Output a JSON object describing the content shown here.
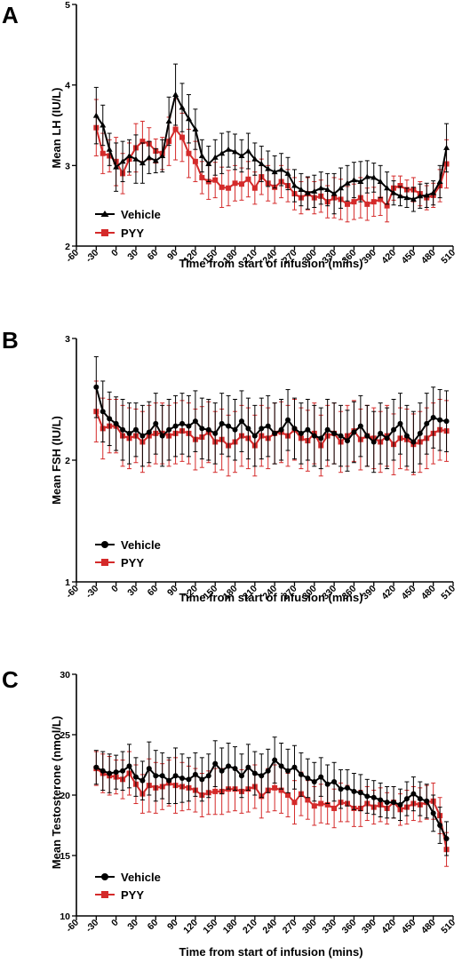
{
  "chart_data": [
    {
      "panel": "A",
      "type": "line",
      "xlabel": "Time from start of infusion (mins)",
      "ylabel": "Mean LH (IU/L)",
      "xlim": [
        -60,
        510
      ],
      "ylim": [
        2,
        5
      ],
      "xticks": [
        -60,
        -30,
        0,
        30,
        60,
        90,
        120,
        150,
        180,
        210,
        240,
        270,
        300,
        330,
        360,
        390,
        420,
        450,
        480,
        510
      ],
      "yticks": [
        2,
        3,
        4,
        5
      ],
      "legend": "bottom-left",
      "series": [
        {
          "name": "Vehicle",
          "color": "#000000",
          "marker": "triangle",
          "x": [
            -30,
            -20,
            -10,
            0,
            10,
            20,
            30,
            40,
            50,
            60,
            70,
            80,
            90,
            100,
            110,
            120,
            130,
            140,
            150,
            160,
            170,
            180,
            190,
            200,
            210,
            220,
            230,
            240,
            250,
            260,
            270,
            280,
            290,
            300,
            310,
            320,
            330,
            340,
            350,
            360,
            370,
            380,
            390,
            400,
            410,
            420,
            430,
            440,
            450,
            460,
            470,
            480,
            490,
            500
          ],
          "y": [
            3.62,
            3.5,
            3.2,
            2.98,
            3.05,
            3.12,
            3.08,
            3.03,
            3.1,
            3.06,
            3.12,
            3.55,
            3.88,
            3.72,
            3.58,
            3.45,
            3.12,
            3.02,
            3.1,
            3.15,
            3.2,
            3.17,
            3.12,
            3.18,
            3.08,
            3.02,
            2.96,
            2.92,
            2.95,
            2.9,
            2.75,
            2.7,
            2.66,
            2.68,
            2.72,
            2.7,
            2.65,
            2.72,
            2.78,
            2.82,
            2.8,
            2.86,
            2.85,
            2.8,
            2.72,
            2.66,
            2.62,
            2.6,
            2.58,
            2.62,
            2.63,
            2.66,
            2.8,
            3.22
          ],
          "err": [
            0.35,
            0.25,
            0.2,
            0.3,
            0.25,
            0.2,
            0.3,
            0.25,
            0.2,
            0.15,
            0.2,
            0.3,
            0.38,
            0.3,
            0.3,
            0.25,
            0.2,
            0.22,
            0.22,
            0.25,
            0.22,
            0.22,
            0.2,
            0.22,
            0.2,
            0.22,
            0.22,
            0.2,
            0.2,
            0.2,
            0.2,
            0.2,
            0.2,
            0.2,
            0.2,
            0.2,
            0.25,
            0.25,
            0.22,
            0.22,
            0.25,
            0.2,
            0.18,
            0.2,
            0.2,
            0.15,
            0.12,
            0.12,
            0.15,
            0.15,
            0.15,
            0.15,
            0.2,
            0.3
          ]
        },
        {
          "name": "PYY",
          "color": "#d42a2a",
          "marker": "square",
          "x": [
            -30,
            -20,
            -10,
            0,
            10,
            20,
            30,
            40,
            50,
            60,
            70,
            80,
            90,
            100,
            110,
            120,
            130,
            140,
            150,
            160,
            170,
            180,
            190,
            200,
            210,
            220,
            230,
            240,
            250,
            260,
            270,
            280,
            290,
            300,
            310,
            320,
            330,
            340,
            350,
            360,
            370,
            380,
            390,
            400,
            410,
            420,
            430,
            440,
            450,
            460,
            470,
            480,
            490,
            500
          ],
          "y": [
            3.47,
            3.15,
            3.12,
            3.05,
            2.9,
            3.08,
            3.22,
            3.3,
            3.27,
            3.18,
            3.15,
            3.3,
            3.45,
            3.35,
            3.15,
            3.05,
            2.85,
            2.8,
            2.82,
            2.73,
            2.72,
            2.78,
            2.77,
            2.83,
            2.72,
            2.86,
            2.78,
            2.73,
            2.8,
            2.75,
            2.65,
            2.6,
            2.65,
            2.6,
            2.62,
            2.55,
            2.6,
            2.58,
            2.52,
            2.55,
            2.6,
            2.52,
            2.55,
            2.58,
            2.5,
            2.72,
            2.75,
            2.7,
            2.7,
            2.65,
            2.6,
            2.63,
            2.75,
            3.02
          ]
        }
      ]
    },
    {
      "panel": "B",
      "type": "line",
      "xlabel": "Time from start of infusion (mins)",
      "ylabel": "Mean FSH (IU/L)",
      "xlim": [
        -60,
        510
      ],
      "ylim": [
        1,
        3
      ],
      "xticks": [
        -60,
        -30,
        0,
        30,
        60,
        90,
        120,
        150,
        180,
        210,
        240,
        270,
        300,
        330,
        360,
        390,
        420,
        450,
        480,
        510
      ],
      "yticks": [
        1,
        2,
        3
      ],
      "legend": "bottom-left",
      "series": [
        {
          "name": "Vehicle",
          "color": "#000000",
          "marker": "circle",
          "x": [
            -30,
            -20,
            -10,
            0,
            10,
            20,
            30,
            40,
            50,
            60,
            70,
            80,
            90,
            100,
            110,
            120,
            130,
            140,
            150,
            160,
            170,
            180,
            190,
            200,
            210,
            220,
            230,
            240,
            250,
            260,
            270,
            280,
            290,
            300,
            310,
            320,
            330,
            340,
            350,
            360,
            370,
            380,
            390,
            400,
            410,
            420,
            430,
            440,
            450,
            460,
            470,
            480,
            490,
            500
          ],
          "y": [
            2.6,
            2.4,
            2.34,
            2.3,
            2.25,
            2.22,
            2.25,
            2.2,
            2.23,
            2.3,
            2.2,
            2.25,
            2.28,
            2.3,
            2.28,
            2.32,
            2.26,
            2.25,
            2.22,
            2.3,
            2.28,
            2.25,
            2.32,
            2.26,
            2.2,
            2.26,
            2.28,
            2.22,
            2.25,
            2.33,
            2.26,
            2.22,
            2.25,
            2.2,
            2.18,
            2.25,
            2.22,
            2.2,
            2.16,
            2.23,
            2.28,
            2.2,
            2.15,
            2.22,
            2.18,
            2.25,
            2.3,
            2.2,
            2.15,
            2.22,
            2.3,
            2.35,
            2.33,
            2.32
          ],
          "err": [
            0.25,
            0.25,
            0.22,
            0.22,
            0.25,
            0.25,
            0.22,
            0.25,
            0.25,
            0.25,
            0.25,
            0.25,
            0.25,
            0.25,
            0.25,
            0.25,
            0.25,
            0.25,
            0.25,
            0.25,
            0.25,
            0.25,
            0.25,
            0.25,
            0.25,
            0.25,
            0.25,
            0.25,
            0.25,
            0.25,
            0.25,
            0.25,
            0.25,
            0.25,
            0.25,
            0.25,
            0.25,
            0.25,
            0.25,
            0.25,
            0.25,
            0.25,
            0.25,
            0.25,
            0.25,
            0.25,
            0.25,
            0.25,
            0.25,
            0.25,
            0.25,
            0.25,
            0.25,
            0.25
          ]
        },
        {
          "name": "PYY",
          "color": "#d42a2a",
          "marker": "square",
          "x": [
            -30,
            -20,
            -10,
            0,
            10,
            20,
            30,
            40,
            50,
            60,
            70,
            80,
            90,
            100,
            110,
            120,
            130,
            140,
            150,
            160,
            170,
            180,
            190,
            200,
            210,
            220,
            230,
            240,
            250,
            260,
            270,
            280,
            290,
            300,
            310,
            320,
            330,
            340,
            350,
            360,
            370,
            380,
            390,
            400,
            410,
            420,
            430,
            440,
            450,
            460,
            470,
            480,
            490,
            500
          ],
          "y": [
            2.4,
            2.26,
            2.28,
            2.28,
            2.2,
            2.18,
            2.2,
            2.15,
            2.2,
            2.22,
            2.22,
            2.2,
            2.22,
            2.24,
            2.22,
            2.17,
            2.19,
            2.23,
            2.15,
            2.17,
            2.12,
            2.15,
            2.2,
            2.18,
            2.12,
            2.2,
            2.18,
            2.22,
            2.23,
            2.2,
            2.25,
            2.18,
            2.16,
            2.22,
            2.12,
            2.2,
            2.22,
            2.15,
            2.2,
            2.24,
            2.17,
            2.2,
            2.18,
            2.15,
            2.2,
            2.13,
            2.18,
            2.17,
            2.13,
            2.15,
            2.18,
            2.22,
            2.25,
            2.24
          ]
        }
      ]
    },
    {
      "panel": "C",
      "type": "line",
      "xlabel": "Time from start of infusion (mins)",
      "ylabel": "Mean Testosterone (nmol/L)",
      "xlim": [
        -60,
        510
      ],
      "ylim": [
        10,
        30
      ],
      "xticks": [
        -60,
        -30,
        0,
        30,
        60,
        90,
        120,
        150,
        180,
        210,
        240,
        270,
        300,
        330,
        360,
        390,
        420,
        450,
        480,
        510
      ],
      "yticks": [
        10,
        15,
        20,
        25,
        30
      ],
      "legend": "bottom-left",
      "series": [
        {
          "name": "Vehicle",
          "color": "#000000",
          "marker": "circle",
          "x": [
            -30,
            -20,
            -10,
            0,
            10,
            20,
            30,
            40,
            50,
            60,
            70,
            80,
            90,
            100,
            110,
            120,
            130,
            140,
            150,
            160,
            170,
            180,
            190,
            200,
            210,
            220,
            230,
            240,
            250,
            260,
            270,
            280,
            290,
            300,
            310,
            320,
            330,
            340,
            350,
            360,
            370,
            380,
            390,
            400,
            410,
            420,
            430,
            440,
            450,
            460,
            470,
            480,
            490,
            500
          ],
          "y": [
            22.3,
            22.0,
            21.8,
            21.9,
            22.0,
            22.4,
            21.5,
            21.2,
            22.2,
            21.6,
            21.6,
            21.2,
            21.6,
            21.4,
            21.3,
            21.7,
            21.3,
            21.6,
            22.6,
            22.0,
            22.4,
            22.2,
            21.6,
            22.3,
            21.8,
            21.6,
            22.0,
            22.9,
            22.4,
            22.0,
            22.3,
            21.7,
            21.4,
            21.1,
            21.5,
            20.9,
            21.1,
            20.5,
            20.6,
            20.3,
            20.2,
            19.9,
            19.8,
            19.6,
            19.4,
            19.4,
            19.2,
            19.7,
            20.1,
            19.7,
            19.5,
            18.5,
            17.5,
            16.4
          ],
          "err": [
            1.4,
            1.6,
            1.6,
            1.4,
            1.6,
            1.8,
            1.6,
            1.6,
            2.2,
            2.1,
            1.9,
            1.9,
            2.3,
            2.0,
            1.8,
            1.8,
            1.8,
            1.8,
            1.9,
            1.9,
            1.9,
            1.8,
            1.8,
            1.9,
            1.8,
            1.8,
            1.8,
            1.9,
            1.9,
            1.8,
            1.8,
            1.8,
            1.6,
            1.6,
            1.6,
            1.6,
            1.6,
            1.6,
            1.5,
            1.5,
            1.5,
            1.4,
            1.4,
            1.4,
            1.3,
            1.3,
            1.3,
            1.4,
            1.4,
            1.4,
            1.4,
            1.5,
            1.5,
            1.4
          ]
        },
        {
          "name": "PYY",
          "color": "#d42a2a",
          "marker": "square",
          "x": [
            -30,
            -20,
            -10,
            0,
            10,
            20,
            30,
            40,
            50,
            60,
            70,
            80,
            90,
            100,
            110,
            120,
            130,
            140,
            150,
            160,
            170,
            180,
            190,
            200,
            210,
            220,
            230,
            240,
            250,
            260,
            270,
            280,
            290,
            300,
            310,
            320,
            330,
            340,
            350,
            360,
            370,
            380,
            390,
            400,
            410,
            420,
            430,
            440,
            450,
            460,
            470,
            480,
            490,
            500
          ],
          "y": [
            22.2,
            21.8,
            21.6,
            21.5,
            21.3,
            21.8,
            20.9,
            20.1,
            20.8,
            20.6,
            20.7,
            21.0,
            20.8,
            20.7,
            20.6,
            20.4,
            20.0,
            20.2,
            20.3,
            20.3,
            20.5,
            20.5,
            20.3,
            20.5,
            20.7,
            19.9,
            20.4,
            20.6,
            20.4,
            20.0,
            19.4,
            20.1,
            19.6,
            19.1,
            19.3,
            19.2,
            18.9,
            19.4,
            19.3,
            18.9,
            18.9,
            19.3,
            19.0,
            19.2,
            18.9,
            19.4,
            18.8,
            19.0,
            19.3,
            19.2,
            19.4,
            19.5,
            18.3,
            15.5
          ]
        }
      ]
    }
  ],
  "figure": {
    "panels": [
      {
        "letter": "A",
        "ylabel": "Mean LH (IU/L)",
        "xlabel": "Time from start of infusion (mins)",
        "legend": [
          "Vehicle",
          "PYY"
        ]
      },
      {
        "letter": "B",
        "ylabel": "Mean FSH (IU/L)",
        "xlabel": "Time from start of infusion (mins)",
        "legend": [
          "Vehicle",
          "PYY"
        ]
      },
      {
        "letter": "C",
        "ylabel": "Mean Testosterone (nmol/L)",
        "xlabel": "Time from start of infusion (mins)",
        "legend": [
          "Vehicle",
          "PYY"
        ]
      }
    ]
  }
}
